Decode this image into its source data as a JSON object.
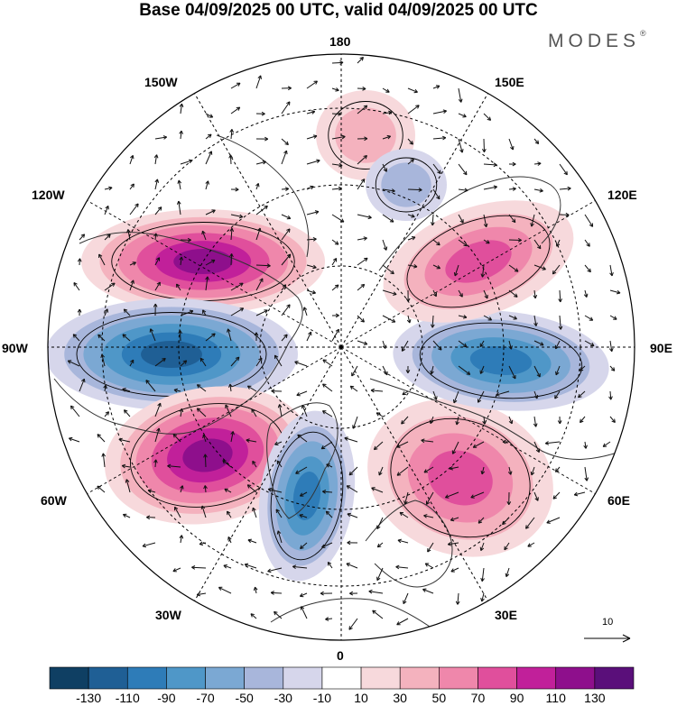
{
  "title": "Base 04/09/2025 00 UTC, valid 04/09/2025 00 UTC",
  "brand": "MODES",
  "brand_mark": "®",
  "longitude_labels": [
    "180",
    "150E",
    "120E",
    "90E",
    "60E",
    "30E",
    "0",
    "30W",
    "60W",
    "90W",
    "120W",
    "150W"
  ],
  "vector_reference": {
    "label": "10",
    "icon": "arrow-right-icon"
  },
  "map": {
    "projection": "north polar stereographic",
    "center": "North Pole"
  },
  "anomaly_cells": [
    {
      "name": "positive-cell-150W-120W",
      "sign": "positive",
      "peak": 120
    },
    {
      "name": "negative-cell-90W",
      "sign": "negative",
      "peak": -120
    },
    {
      "name": "positive-cell-60W",
      "sign": "positive",
      "peak": 120
    },
    {
      "name": "negative-cell-30W",
      "sign": "negative",
      "peak": -100
    },
    {
      "name": "positive-cell-30E-60E",
      "sign": "positive",
      "peak": 70
    },
    {
      "name": "negative-cell-90E",
      "sign": "negative",
      "peak": -90
    },
    {
      "name": "positive-cell-120E",
      "sign": "positive",
      "peak": 70
    },
    {
      "name": "positive-cell-180",
      "sign": "positive",
      "peak": 40
    },
    {
      "name": "negative-cell-160E",
      "sign": "negative",
      "peak": -40
    }
  ],
  "colorbar": {
    "ticks": [
      "-130",
      "-110",
      "-90",
      "-70",
      "-50",
      "-30",
      "-10",
      "10",
      "30",
      "50",
      "70",
      "90",
      "110",
      "130"
    ],
    "colors": [
      "#0f3f63",
      "#1f5f95",
      "#2e7cb8",
      "#4f97c8",
      "#7ba8d3",
      "#a8b6db",
      "#d6d6eb",
      "#ffffff",
      "#f7d9dc",
      "#f4b2be",
      "#ef87ab",
      "#e04f9c",
      "#c1209a",
      "#8e0f8c",
      "#5a0f7a"
    ]
  }
}
